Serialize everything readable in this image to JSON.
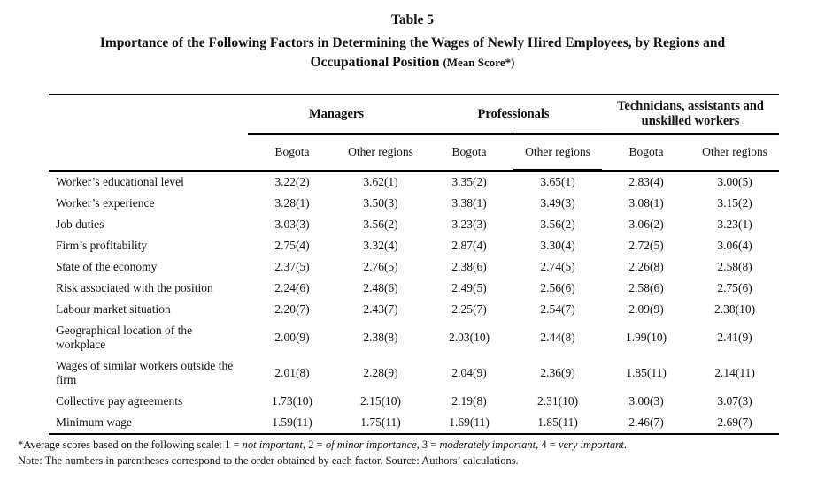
{
  "title": {
    "table_number": "Table 5",
    "caption_line1": "Importance of the Following Factors in Determining the Wages of Newly Hired Employees, by Regions and",
    "caption_line2_main": "Occupational Position ",
    "caption_line2_paren": "(Mean Score*)"
  },
  "table": {
    "column_groups": [
      {
        "label": "Managers"
      },
      {
        "label": "Professionals"
      },
      {
        "label": "Technicians, assistants and unskilled workers"
      }
    ],
    "sub_columns": [
      "Bogota",
      "Other regions",
      "Bogota",
      "Other regions",
      "Bogota",
      "Other regions"
    ],
    "rows": [
      {
        "factor": "Worker’s educational level",
        "values": [
          "3.22(2)",
          "3.62(1)",
          "3.35(2)",
          "3.65(1)",
          "2.83(4)",
          "3.00(5)"
        ]
      },
      {
        "factor": "Worker’s experience",
        "values": [
          "3.28(1)",
          "3.50(3)",
          "3.38(1)",
          "3.49(3)",
          "3.08(1)",
          "3.15(2)"
        ]
      },
      {
        "factor": "Job duties",
        "values": [
          "3.03(3)",
          "3.56(2)",
          "3.23(3)",
          "3.56(2)",
          "3.06(2)",
          "3.23(1)"
        ]
      },
      {
        "factor": "Firm’s profitability",
        "values": [
          "2.75(4)",
          "3.32(4)",
          "2.87(4)",
          "3.30(4)",
          "2.72(5)",
          "3.06(4)"
        ]
      },
      {
        "factor": "State of the economy",
        "values": [
          "2.37(5)",
          "2.76(5)",
          "2.38(6)",
          "2.74(5)",
          "2.26(8)",
          "2.58(8)"
        ]
      },
      {
        "factor": "Risk associated with the position",
        "values": [
          "2.24(6)",
          "2.48(6)",
          "2.49(5)",
          "2.56(6)",
          "2.58(6)",
          "2.75(6)"
        ]
      },
      {
        "factor": "Labour market situation",
        "values": [
          "2.20(7)",
          "2.43(7)",
          "2.25(7)",
          "2.54(7)",
          "2.09(9)",
          "2.38(10)"
        ]
      },
      {
        "factor": "Geographical location of the workplace",
        "values": [
          "2.00(9)",
          "2.38(8)",
          "2.03(10)",
          "2.44(8)",
          "1.99(10)",
          "2.41(9)"
        ]
      },
      {
        "factor": "Wages of similar workers outside the firm",
        "values": [
          "2.01(8)",
          "2.28(9)",
          "2.04(9)",
          "2.36(9)",
          "1.85(11)",
          "2.14(11)"
        ]
      },
      {
        "factor": "Collective pay agreements",
        "values": [
          "1.73(10)",
          "2.15(10)",
          "2.19(8)",
          "2.31(10)",
          "3.00(3)",
          "3.07(3)"
        ]
      },
      {
        "factor": "Minimum wage",
        "values": [
          "1.59(11)",
          "1.75(11)",
          "1.69(11)",
          "1.85(11)",
          "2.46(7)",
          "2.69(7)"
        ]
      }
    ]
  },
  "footnotes": {
    "scale_segments": [
      {
        "text": "*Average scores based on the following scale: 1 = ",
        "italic": false
      },
      {
        "text": "not important",
        "italic": true
      },
      {
        "text": ", 2 = ",
        "italic": false
      },
      {
        "text": "of minor importance",
        "italic": true
      },
      {
        "text": ", 3 = ",
        "italic": false
      },
      {
        "text": "moderately important",
        "italic": true
      },
      {
        "text": ", 4 = ",
        "italic": false
      },
      {
        "text": "very important",
        "italic": true
      },
      {
        "text": ".",
        "italic": false
      }
    ],
    "note": "Note: The numbers in parentheses correspond to the order obtained by each factor. Source: Authors’ calculations."
  }
}
